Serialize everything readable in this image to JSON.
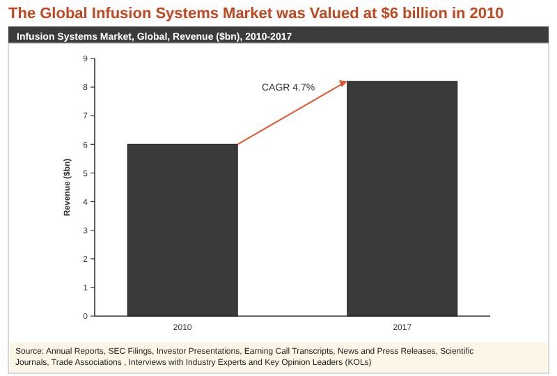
{
  "chart_data": {
    "type": "bar",
    "title": "The Global Infusion Systems Market was Valued at $6 billion in 2010",
    "subtitle": "Infusion Systems Market, Global, Revenue ($bn), 2010-2017",
    "ylabel": "Revenue ($bn)",
    "categories": [
      "2010",
      "2017"
    ],
    "values": [
      6.0,
      8.2
    ],
    "color": "#3a3a3a",
    "ylim": [
      0,
      9
    ],
    "yticks": [
      0,
      1,
      2,
      3,
      4,
      5,
      6,
      7,
      8,
      9
    ],
    "grid": false,
    "annotations": [
      "CAGR 4.7%",
      "Source: Annual Reports, SEC Filings, Investor Presentations, Earning Call Transcripts, News and Press Releases, Scientific Journals, Trade Associations , Interviews with Industry Experts and Key Opinion Leaders (KOLs)"
    ]
  }
}
